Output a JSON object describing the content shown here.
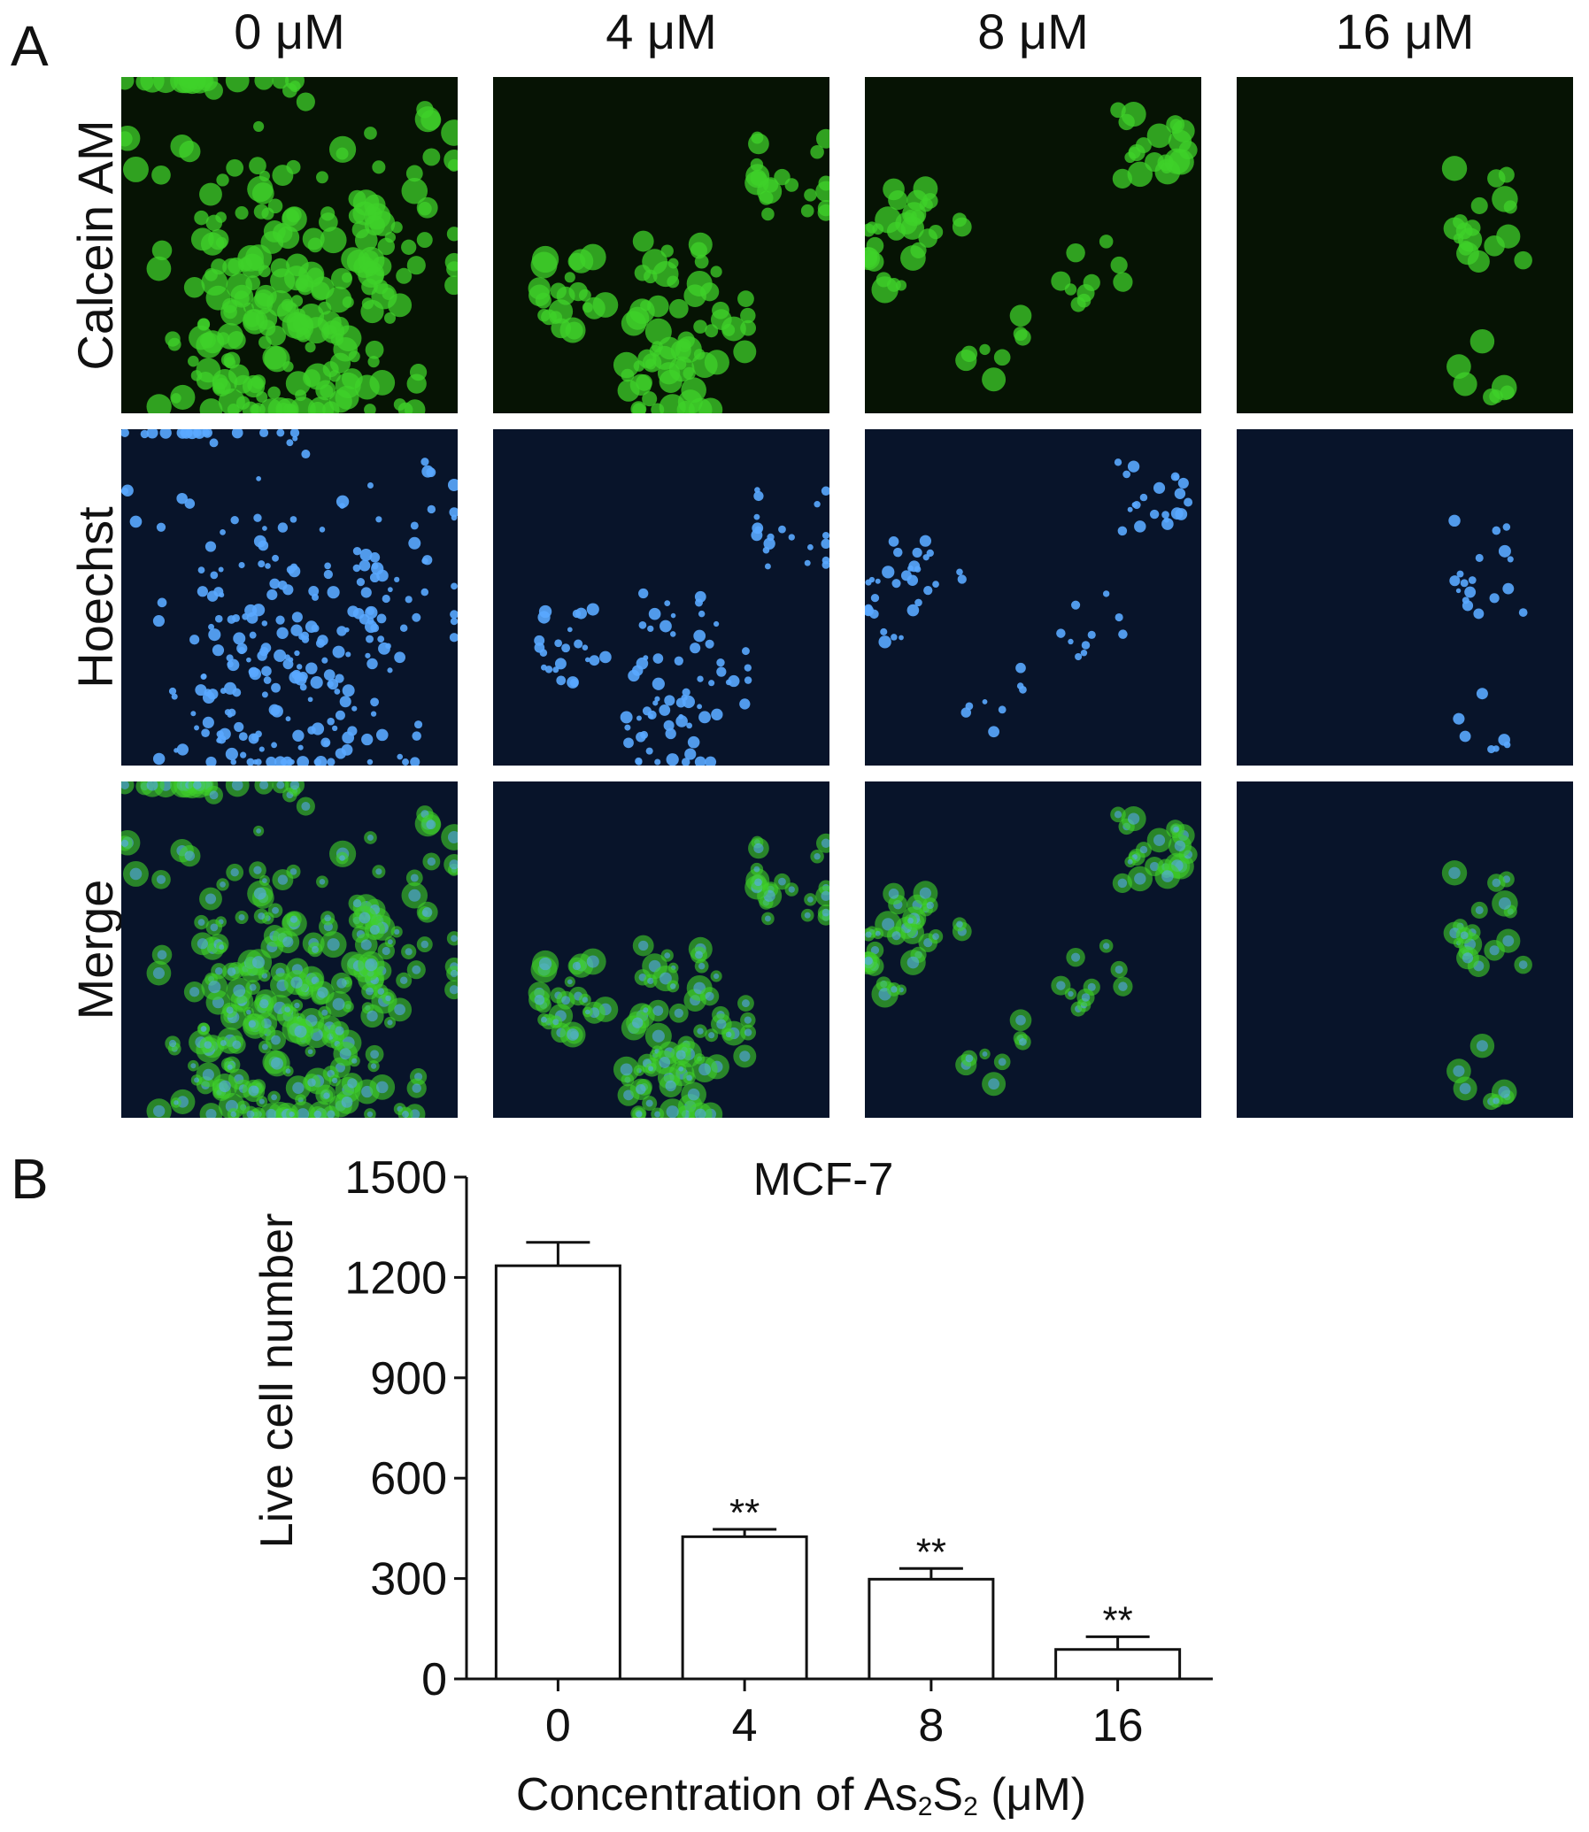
{
  "panel_a": {
    "letter": "A",
    "columns": [
      "0 μM",
      "4 μM",
      "8 μM",
      "16 μM"
    ],
    "rows": [
      "Calcein AM",
      "Hoechst",
      "Merge"
    ],
    "channel_colors": {
      "calcein": "#3fd12a",
      "hoechst": "#5aa8ff",
      "background_green": "#061304",
      "background_blue": "#08142a"
    }
  },
  "panel_b": {
    "letter": "B"
  },
  "chart_data": {
    "type": "bar",
    "title": "MCF-7",
    "xlabel_pre": "Concentration of As",
    "xlabel_sub1": "2",
    "xlabel_mid": "S",
    "xlabel_sub2": "2",
    "xlabel_post": " (μM)",
    "ylabel": "Live cell number",
    "categories": [
      "0",
      "4",
      "8",
      "16"
    ],
    "values": [
      1235,
      425,
      298,
      88
    ],
    "errors": [
      70,
      22,
      32,
      38
    ],
    "annotations": [
      "",
      "**",
      "**",
      "**"
    ],
    "ylim": [
      0,
      1500
    ],
    "yticks": [
      0,
      300,
      600,
      900,
      1200,
      1500
    ],
    "bar_color": "#ffffff",
    "grid": false,
    "legend": false
  }
}
